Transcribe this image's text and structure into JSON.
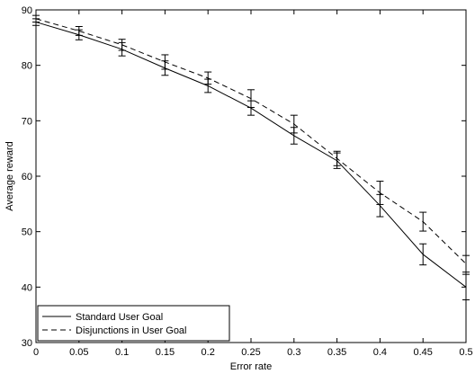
{
  "chart_data": {
    "type": "line",
    "title": "",
    "xlabel": "Error rate",
    "ylabel": "Average reward",
    "xlim": [
      0,
      0.5
    ],
    "ylim": [
      30,
      90
    ],
    "grid": false,
    "legend_position": "bottom-left",
    "x": [
      0,
      0.05,
      0.1,
      0.15,
      0.2,
      0.25,
      0.3,
      0.35,
      0.4,
      0.45,
      0.5
    ],
    "x_tick_labels": [
      "0",
      "0.05",
      "0.1",
      "0.15",
      "0.2",
      "0.25",
      "0.3",
      "0.35",
      "0.4",
      "0.45",
      "0.5"
    ],
    "y_ticks": [
      30,
      40,
      50,
      60,
      70,
      80,
      90
    ],
    "y_tick_labels": [
      "30",
      "40",
      "50",
      "60",
      "70",
      "80",
      "90"
    ],
    "series": [
      {
        "name": "Standard User Goal",
        "line_style": "solid",
        "color": "#000000",
        "values": [
          87.8,
          85.5,
          82.9,
          79.5,
          76.3,
          72.3,
          67.3,
          62.8,
          54.7,
          45.9,
          40.0
        ],
        "errors": [
          0.6,
          0.9,
          1.2,
          1.3,
          1.2,
          1.3,
          1.5,
          1.4,
          2.0,
          1.9,
          2.3
        ]
      },
      {
        "name": "Disjunctions in User Goal",
        "line_style": "dashed",
        "color": "#000000",
        "values": [
          88.4,
          86.2,
          83.7,
          80.6,
          77.7,
          74.0,
          69.4,
          63.2,
          57.0,
          51.8,
          44.2
        ],
        "errors": [
          0.6,
          0.8,
          1.0,
          1.3,
          1.1,
          1.6,
          1.6,
          1.3,
          2.1,
          1.7,
          1.5
        ]
      }
    ]
  }
}
